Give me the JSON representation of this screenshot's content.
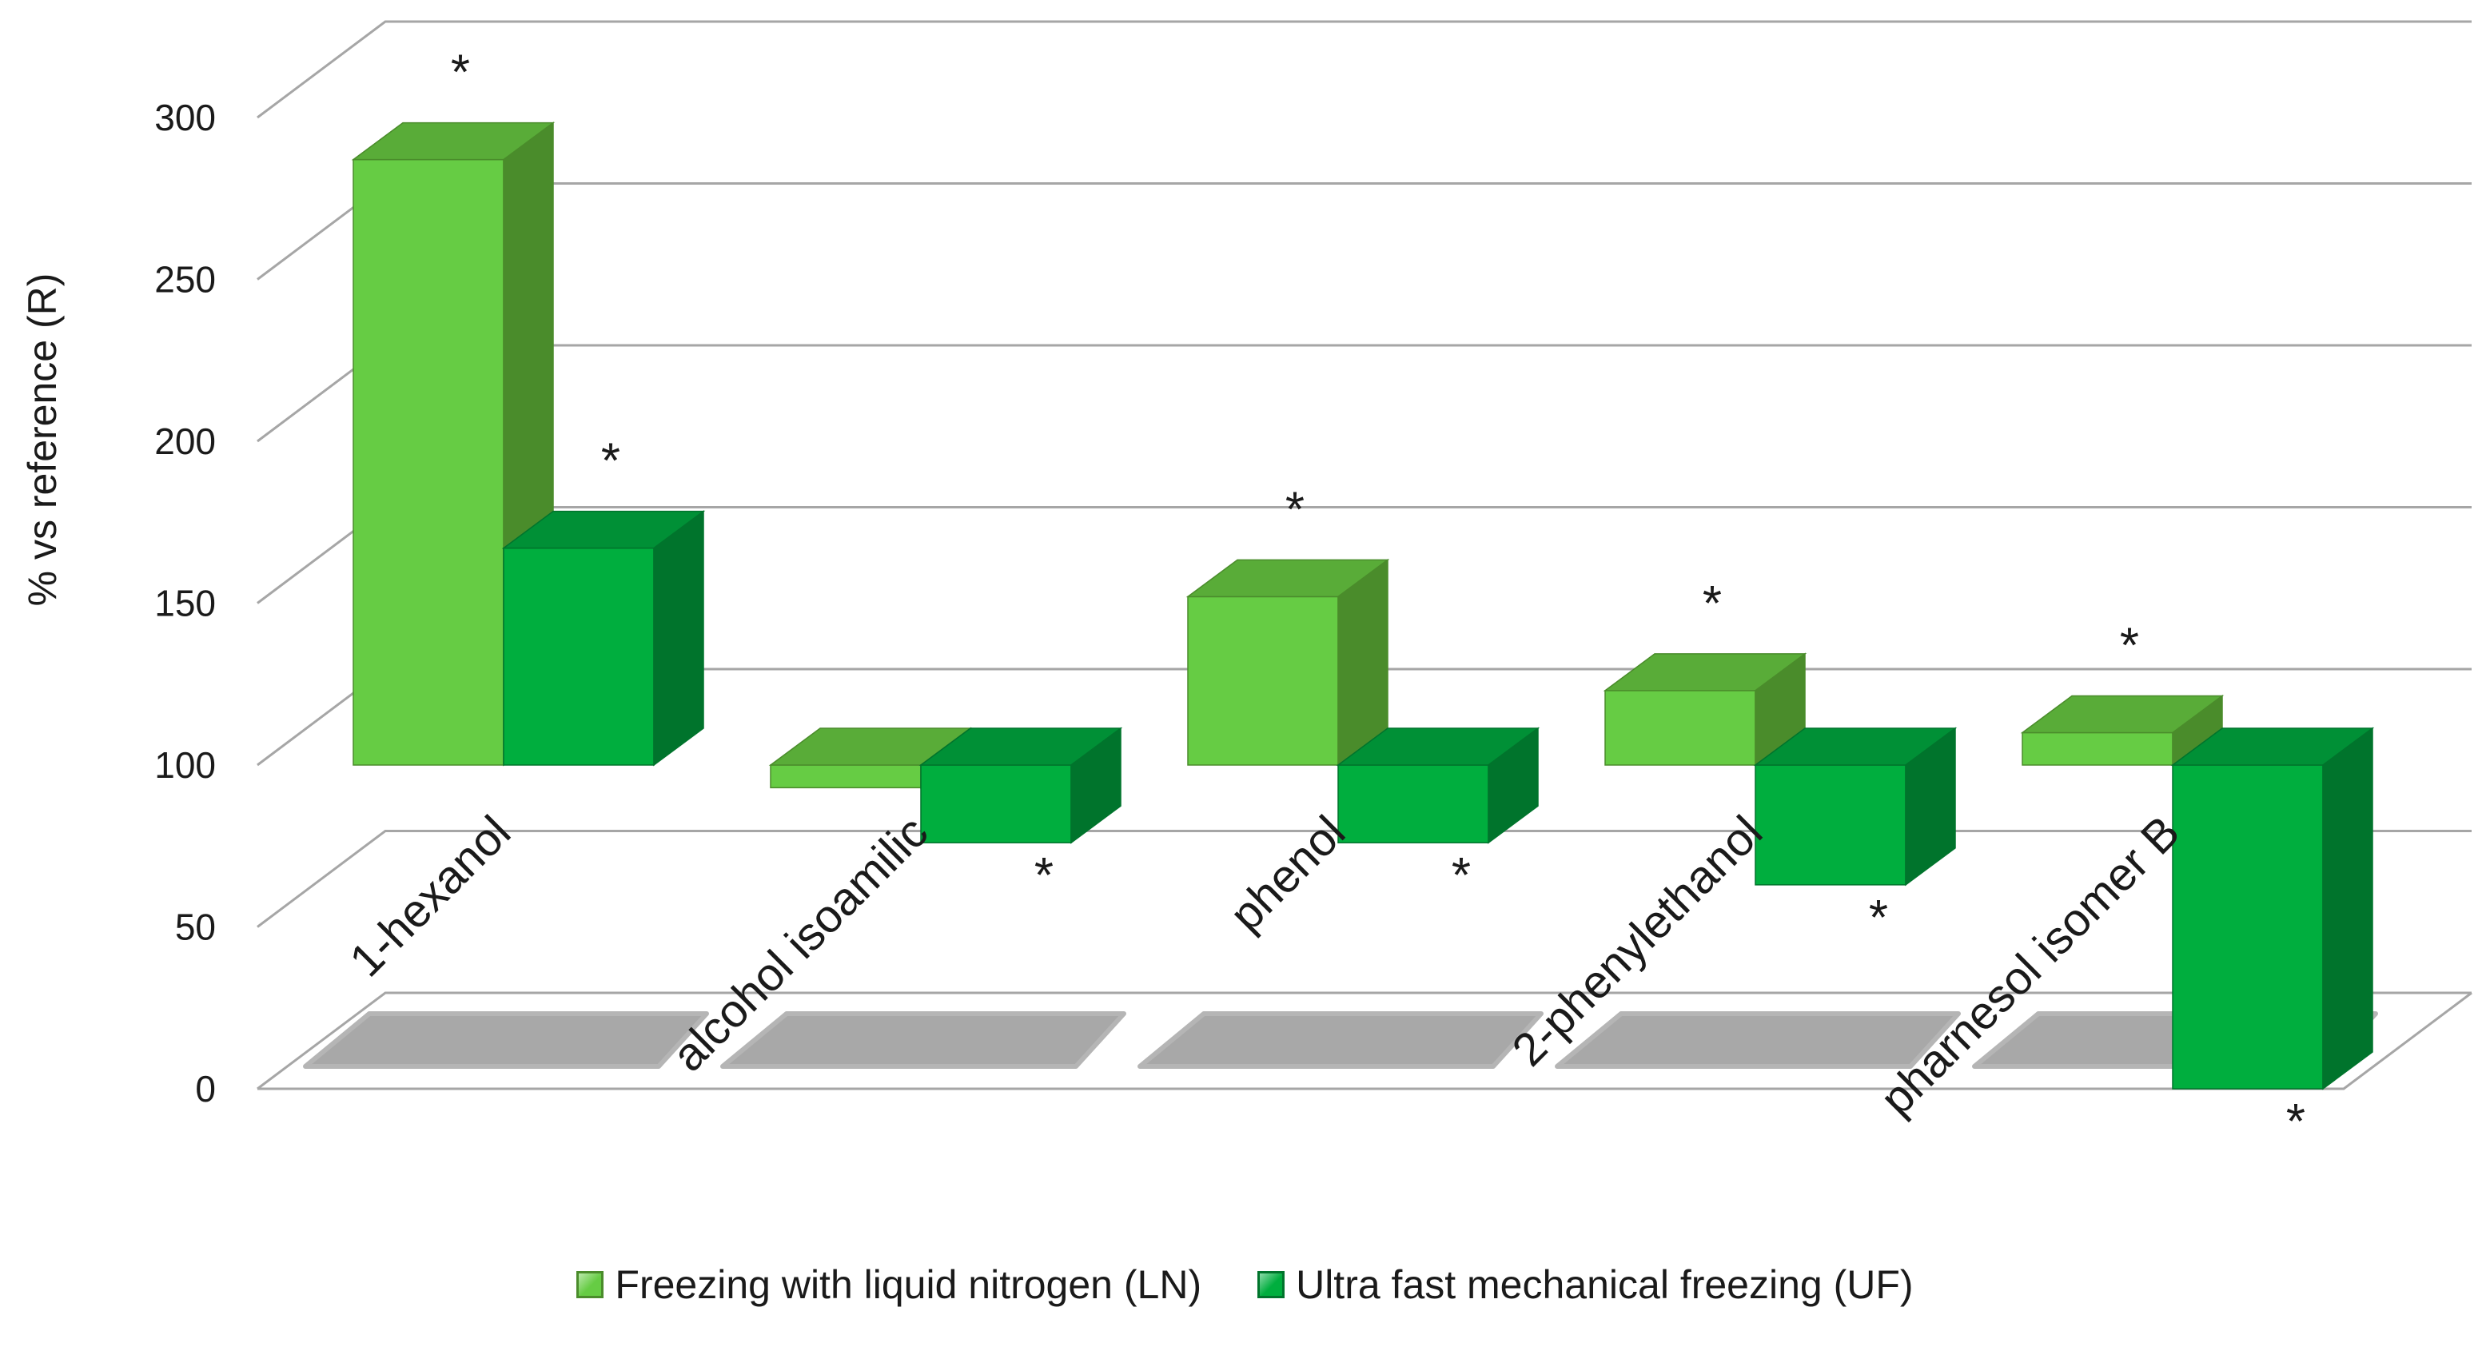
{
  "chart_data": {
    "type": "bar",
    "style": "3d-clustered-column",
    "ylabel": "% vs  reference (R)",
    "ylim": [
      0,
      300
    ],
    "y_ticks": [
      0,
      50,
      100,
      150,
      200,
      250,
      300
    ],
    "baseline": 100,
    "grid": true,
    "legend_position": "bottom",
    "categories": [
      "1-hexanol",
      "alcohol isoamilic",
      "phenol",
      "2-phenylethanol",
      "pharnesol isomer B"
    ],
    "series": [
      {
        "name": "Freezing with liquid nitrogen  (LN)",
        "values": [
          287,
          93,
          152,
          123,
          110
        ],
        "significant": [
          true,
          false,
          true,
          true,
          true
        ],
        "color": "#66CC44",
        "top_color": "#59AC38",
        "side_color": "#4A8C2B"
      },
      {
        "name": "Ultra fast mechanical freezing  (UF)",
        "values": [
          167,
          76,
          76,
          63,
          0
        ],
        "significant": [
          true,
          true,
          true,
          true,
          true
        ],
        "color": "#00AE3E",
        "top_color": "#009036",
        "side_color": "#00742C"
      }
    ],
    "significance_marker": "*"
  }
}
